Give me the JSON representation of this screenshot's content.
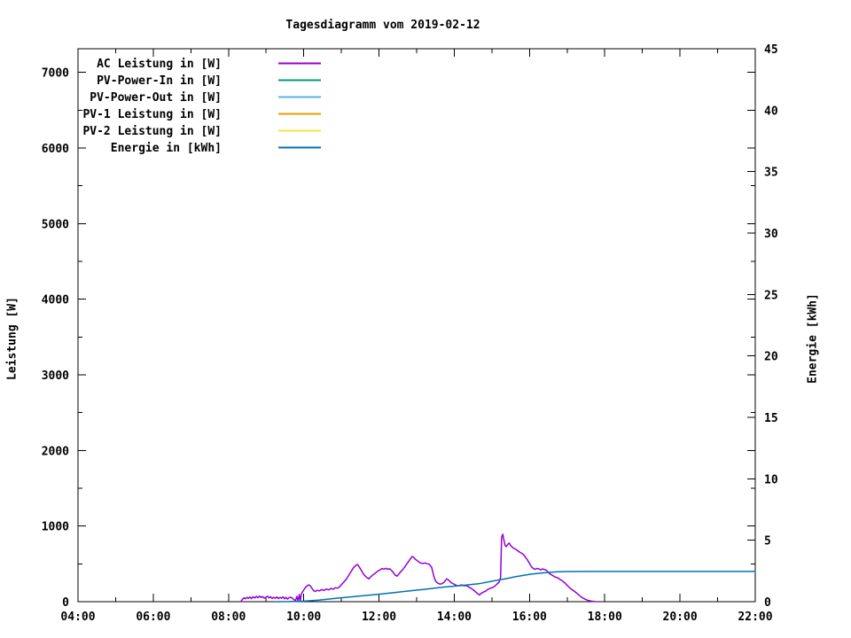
{
  "chart_data": {
    "type": "line",
    "title": "Tagesdiagramm vom 2019-02-12",
    "xlabel": "",
    "ylabel": "Leistung [W]",
    "y2label": "Energie [kWh]",
    "xlim": [
      4,
      22
    ],
    "ylim": [
      0,
      7312
    ],
    "y2lim": [
      0,
      45
    ],
    "grid": false,
    "legend_position": "top-left-inside",
    "x_axis": {
      "major_hours": [
        4,
        6,
        8,
        10,
        12,
        14,
        16,
        18,
        20,
        22
      ],
      "labels": [
        "04:00",
        "06:00",
        "08:00",
        "10:00",
        "12:00",
        "14:00",
        "16:00",
        "18:00",
        "20:00",
        "22:00"
      ],
      "minor_hours": [
        5,
        7,
        9,
        11,
        13,
        15,
        17,
        19,
        21
      ]
    },
    "y_axis": {
      "ticks": [
        0,
        1000,
        2000,
        3000,
        4000,
        5000,
        6000,
        7000
      ],
      "labels": [
        "0",
        "1000",
        "2000",
        "3000",
        "4000",
        "5000",
        "6000",
        "7000"
      ],
      "minor_ticks": [
        500,
        1500,
        2500,
        3500,
        4500,
        5500,
        6500
      ]
    },
    "y2_axis": {
      "ticks": [
        0,
        5,
        10,
        15,
        20,
        25,
        30,
        35,
        40,
        45
      ],
      "labels": [
        "0",
        "5",
        "10",
        "15",
        "20",
        "25",
        "30",
        "35",
        "40",
        "45"
      ]
    },
    "series": [
      {
        "name": "AC Leistung in [W]",
        "color": "#9400d3",
        "axis": "y1",
        "points": [
          [
            8.33,
            4
          ],
          [
            8.37,
            30
          ],
          [
            8.41,
            52
          ],
          [
            8.45,
            38
          ],
          [
            8.49,
            58
          ],
          [
            8.53,
            44
          ],
          [
            8.57,
            62
          ],
          [
            8.61,
            40
          ],
          [
            8.65,
            66
          ],
          [
            8.7,
            48
          ],
          [
            8.74,
            70
          ],
          [
            8.78,
            52
          ],
          [
            8.82,
            74
          ],
          [
            8.86,
            56
          ],
          [
            8.9,
            68
          ],
          [
            8.95,
            46
          ],
          [
            9.0,
            60
          ],
          [
            9.04,
            72
          ],
          [
            9.08,
            50
          ],
          [
            9.12,
            64
          ],
          [
            9.16,
            42
          ],
          [
            9.2,
            58
          ],
          [
            9.25,
            44
          ],
          [
            9.29,
            62
          ],
          [
            9.33,
            40
          ],
          [
            9.37,
            56
          ],
          [
            9.41,
            46
          ],
          [
            9.45,
            64
          ],
          [
            9.49,
            38
          ],
          [
            9.53,
            58
          ],
          [
            9.57,
            34
          ],
          [
            9.61,
            52
          ],
          [
            9.65,
            60
          ],
          [
            9.7,
            44
          ],
          [
            9.74,
            28
          ],
          [
            9.78,
            12
          ],
          [
            9.82,
            70
          ],
          [
            9.85,
            8
          ],
          [
            9.88,
            95
          ],
          [
            9.91,
            12
          ],
          [
            9.94,
            105
          ],
          [
            9.98,
            140
          ],
          [
            10.02,
            170
          ],
          [
            10.06,
            195
          ],
          [
            10.1,
            215
          ],
          [
            10.14,
            222
          ],
          [
            10.18,
            205
          ],
          [
            10.22,
            175
          ],
          [
            10.26,
            148
          ],
          [
            10.3,
            135
          ],
          [
            10.36,
            150
          ],
          [
            10.42,
            142
          ],
          [
            10.48,
            160
          ],
          [
            10.54,
            148
          ],
          [
            10.6,
            168
          ],
          [
            10.66,
            156
          ],
          [
            10.72,
            175
          ],
          [
            10.78,
            165
          ],
          [
            10.84,
            185
          ],
          [
            10.9,
            178
          ],
          [
            10.96,
            200
          ],
          [
            11.02,
            235
          ],
          [
            11.08,
            268
          ],
          [
            11.14,
            305
          ],
          [
            11.2,
            352
          ],
          [
            11.26,
            400
          ],
          [
            11.32,
            448
          ],
          [
            11.38,
            478
          ],
          [
            11.43,
            492
          ],
          [
            11.48,
            455
          ],
          [
            11.53,
            415
          ],
          [
            11.58,
            372
          ],
          [
            11.63,
            340
          ],
          [
            11.68,
            318
          ],
          [
            11.73,
            302
          ],
          [
            11.78,
            328
          ],
          [
            11.83,
            352
          ],
          [
            11.88,
            368
          ],
          [
            11.93,
            390
          ],
          [
            11.98,
            408
          ],
          [
            12.03,
            422
          ],
          [
            12.08,
            438
          ],
          [
            12.13,
            430
          ],
          [
            12.18,
            442
          ],
          [
            12.23,
            428
          ],
          [
            12.28,
            436
          ],
          [
            12.33,
            415
          ],
          [
            12.38,
            385
          ],
          [
            12.43,
            352
          ],
          [
            12.48,
            338
          ],
          [
            12.53,
            368
          ],
          [
            12.58,
            398
          ],
          [
            12.63,
            425
          ],
          [
            12.68,
            455
          ],
          [
            12.73,
            492
          ],
          [
            12.78,
            528
          ],
          [
            12.83,
            565
          ],
          [
            12.88,
            598
          ],
          [
            12.92,
            588
          ],
          [
            12.96,
            562
          ],
          [
            13.0,
            548
          ],
          [
            13.05,
            528
          ],
          [
            13.1,
            512
          ],
          [
            13.16,
            505
          ],
          [
            13.22,
            512
          ],
          [
            13.28,
            502
          ],
          [
            13.34,
            495
          ],
          [
            13.4,
            452
          ],
          [
            13.46,
            330
          ],
          [
            13.51,
            268
          ],
          [
            13.56,
            246
          ],
          [
            13.62,
            232
          ],
          [
            13.68,
            238
          ],
          [
            13.74,
            262
          ],
          [
            13.8,
            302
          ],
          [
            13.85,
            285
          ],
          [
            13.9,
            258
          ],
          [
            13.96,
            240
          ],
          [
            14.02,
            225
          ],
          [
            14.08,
            208
          ],
          [
            14.14,
            215
          ],
          [
            14.2,
            222
          ],
          [
            14.26,
            210
          ],
          [
            14.32,
            215
          ],
          [
            14.38,
            196
          ],
          [
            14.44,
            178
          ],
          [
            14.5,
            158
          ],
          [
            14.56,
            132
          ],
          [
            14.62,
            108
          ],
          [
            14.67,
            88
          ],
          [
            14.72,
            112
          ],
          [
            14.78,
            128
          ],
          [
            14.84,
            142
          ],
          [
            14.9,
            165
          ],
          [
            14.96,
            178
          ],
          [
            15.02,
            188
          ],
          [
            15.08,
            205
          ],
          [
            15.14,
            235
          ],
          [
            15.19,
            258
          ],
          [
            15.23,
            320
          ],
          [
            15.26,
            855
          ],
          [
            15.29,
            892
          ],
          [
            15.32,
            812
          ],
          [
            15.35,
            745
          ],
          [
            15.38,
            728
          ],
          [
            15.42,
            758
          ],
          [
            15.46,
            775
          ],
          [
            15.5,
            742
          ],
          [
            15.54,
            722
          ],
          [
            15.58,
            705
          ],
          [
            15.62,
            698
          ],
          [
            15.66,
            682
          ],
          [
            15.7,
            668
          ],
          [
            15.75,
            652
          ],
          [
            15.8,
            638
          ],
          [
            15.85,
            615
          ],
          [
            15.9,
            582
          ],
          [
            15.95,
            548
          ],
          [
            16.0,
            505
          ],
          [
            16.05,
            462
          ],
          [
            16.1,
            438
          ],
          [
            16.15,
            428
          ],
          [
            16.2,
            440
          ],
          [
            16.25,
            432
          ],
          [
            16.3,
            422
          ],
          [
            16.35,
            432
          ],
          [
            16.4,
            425
          ],
          [
            16.45,
            415
          ],
          [
            16.5,
            388
          ],
          [
            16.55,
            365
          ],
          [
            16.6,
            352
          ],
          [
            16.65,
            335
          ],
          [
            16.7,
            322
          ],
          [
            16.75,
            315
          ],
          [
            16.8,
            298
          ],
          [
            16.85,
            282
          ],
          [
            16.9,
            265
          ],
          [
            16.95,
            242
          ],
          [
            17.0,
            215
          ],
          [
            17.06,
            188
          ],
          [
            17.12,
            162
          ],
          [
            17.18,
            142
          ],
          [
            17.24,
            118
          ],
          [
            17.3,
            92
          ],
          [
            17.36,
            68
          ],
          [
            17.42,
            48
          ],
          [
            17.48,
            32
          ],
          [
            17.54,
            20
          ],
          [
            17.6,
            12
          ],
          [
            17.66,
            6
          ],
          [
            17.72,
            2
          ],
          [
            17.76,
            0
          ]
        ]
      },
      {
        "name": "PV-Power-In in [W]",
        "color": "#009e73",
        "axis": "y1",
        "points": []
      },
      {
        "name": "PV-Power-Out in [W]",
        "color": "#56b4e9",
        "axis": "y1",
        "points": []
      },
      {
        "name": "PV-1 Leistung in [W]",
        "color": "#e69f00",
        "axis": "y1",
        "points": []
      },
      {
        "name": "PV-2 Leistung in [W]",
        "color": "#f0e442",
        "axis": "y1",
        "points": []
      },
      {
        "name": "Energie in [kWh]",
        "color": "#0072b2",
        "axis": "y2",
        "points": [
          [
            9.25,
            0
          ],
          [
            9.6,
            0.01
          ],
          [
            10.0,
            0.04
          ],
          [
            10.4,
            0.12
          ],
          [
            10.9,
            0.29
          ],
          [
            11.4,
            0.43
          ],
          [
            11.9,
            0.58
          ],
          [
            12.3,
            0.71
          ],
          [
            12.8,
            0.87
          ],
          [
            13.2,
            1.0
          ],
          [
            13.7,
            1.18
          ],
          [
            14.2,
            1.32
          ],
          [
            14.65,
            1.46
          ],
          [
            15.1,
            1.72
          ],
          [
            15.4,
            1.88
          ],
          [
            15.6,
            2.02
          ],
          [
            15.85,
            2.14
          ],
          [
            16.05,
            2.24
          ],
          [
            16.3,
            2.32
          ],
          [
            16.5,
            2.38
          ],
          [
            16.75,
            2.43
          ],
          [
            17.0,
            2.45
          ],
          [
            17.5,
            2.46
          ],
          [
            22.0,
            2.46
          ]
        ]
      }
    ],
    "colors": {
      "background": "#ffffff",
      "axis": "#000000",
      "text": "#000000"
    }
  }
}
